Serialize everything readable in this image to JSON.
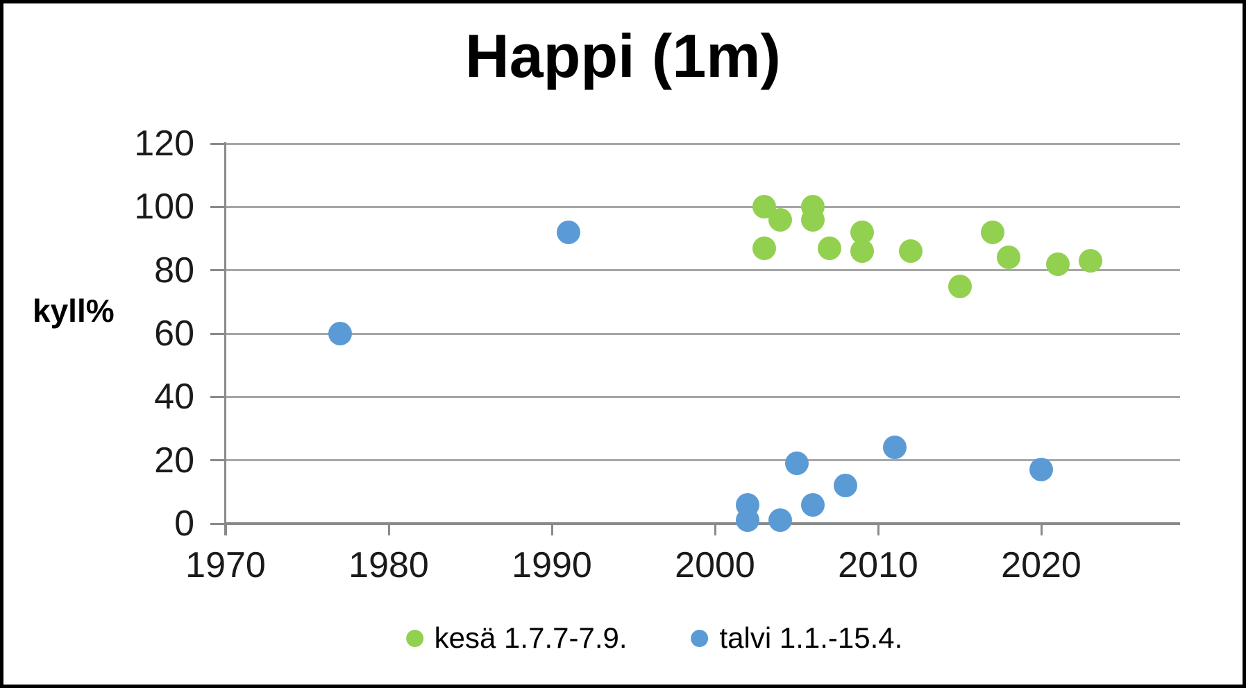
{
  "title": "Happi (1m)",
  "y_axis": {
    "label": "kyll%",
    "ticks": [
      0,
      20,
      40,
      60,
      80,
      100,
      120
    ]
  },
  "x_axis": {
    "ticks": [
      1970,
      1980,
      1990,
      2000,
      2010,
      2020
    ]
  },
  "legend": [
    {
      "name": "kesä 1.7.7-7.9.",
      "color": "#92d050"
    },
    {
      "name": "talvi 1.1.-15.4.",
      "color": "#5b9bd5"
    }
  ],
  "colors": {
    "kesa_green": "#92d050",
    "talvi_blue": "#5b9bd5",
    "gridline_gray": "#a6a6a6",
    "axis_gray": "#8a8a8a"
  },
  "chart_data": {
    "type": "scatter",
    "title": "Happi (1m)",
    "xlabel": "",
    "ylabel": "kyll%",
    "ylim": [
      0,
      120
    ],
    "xlim": [
      1970,
      2028.5
    ],
    "grid": true,
    "legend_position": "bottom",
    "series": [
      {
        "name": "kesä 1.7.7-7.9.",
        "color": "#92d050",
        "points": [
          [
            2003,
            100
          ],
          [
            2003,
            87
          ],
          [
            2004,
            96
          ],
          [
            2006,
            100
          ],
          [
            2006,
            96
          ],
          [
            2007,
            87
          ],
          [
            2009,
            92
          ],
          [
            2009,
            86
          ],
          [
            2012,
            86
          ],
          [
            2015,
            75
          ],
          [
            2017,
            92
          ],
          [
            2018,
            84
          ],
          [
            2021,
            82
          ],
          [
            2023,
            83
          ]
        ]
      },
      {
        "name": "talvi 1.1.-15.4.",
        "color": "#5b9bd5",
        "points": [
          [
            1977,
            60
          ],
          [
            1991,
            92
          ],
          [
            2002,
            6
          ],
          [
            2002,
            1
          ],
          [
            2004,
            1
          ],
          [
            2005,
            19
          ],
          [
            2006,
            6
          ],
          [
            2008,
            12
          ],
          [
            2011,
            24
          ],
          [
            2020,
            17
          ]
        ]
      }
    ]
  }
}
